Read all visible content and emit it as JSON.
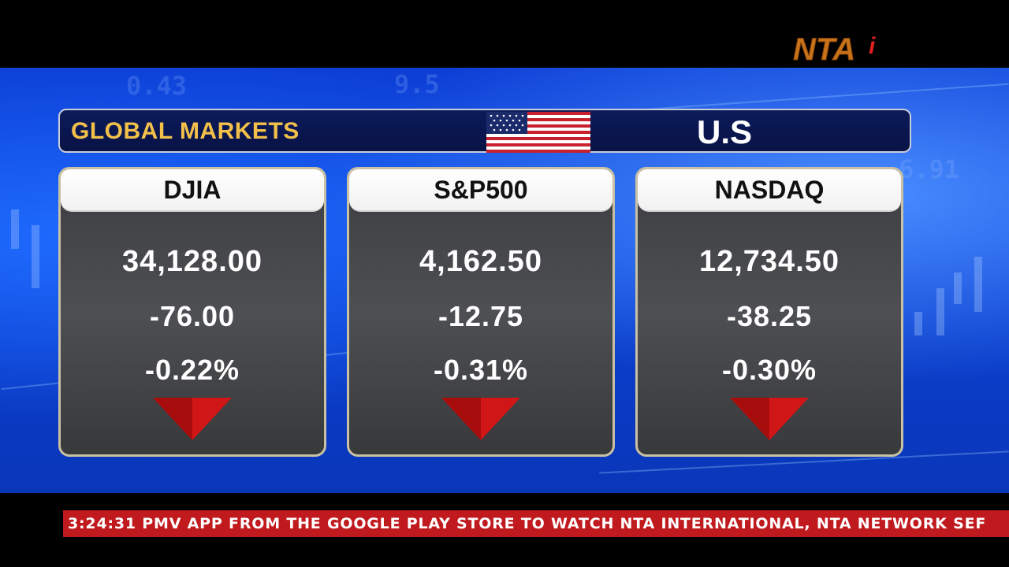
{
  "logo": {
    "text": "NTAi",
    "icon": "nta-logo"
  },
  "header": {
    "title": "GLOBAL MARKETS",
    "country": "U.S",
    "flag": "us-flag-icon"
  },
  "markets": [
    {
      "name": "DJIA",
      "price": "34,128.00",
      "change": "-76.00",
      "percent": "-0.22%",
      "direction": "down"
    },
    {
      "name": "S&P500",
      "price": "4,162.50",
      "change": "-12.75",
      "percent": "-0.31%",
      "direction": "down"
    },
    {
      "name": "NASDAQ",
      "price": "12,734.50",
      "change": "-38.25",
      "percent": "-0.30%",
      "direction": "down"
    }
  ],
  "ticker": {
    "text": "3:24:31 PMV APP FROM THE GOOGLE PLAY STORE TO WATCH NTA INTERNATIONAL, NTA NETWORK SEF"
  },
  "colors": {
    "header_title": "#f3c14a",
    "arrow_down": "#d01616",
    "ticker_bg": "#c01a1e",
    "backdrop": "#0b43d9"
  }
}
